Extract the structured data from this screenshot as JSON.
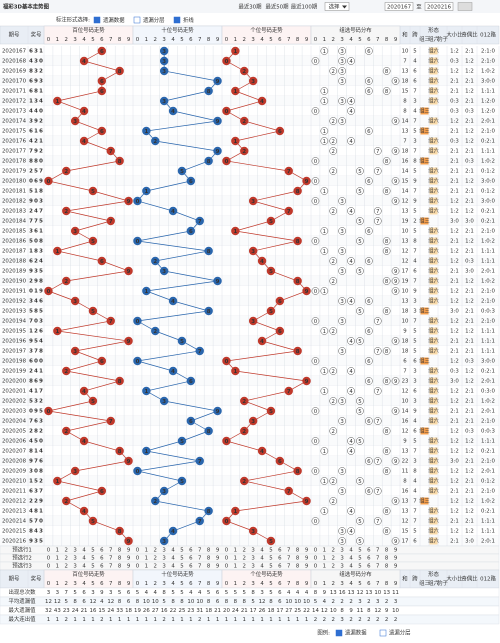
{
  "top": {
    "title": "福彩3D基本走势图",
    "links": [
      "最近30期",
      "最近50期",
      "最近100期"
    ],
    "select": "选择",
    "from": "2020167",
    "to_label": "至",
    "to": "2020216"
  },
  "options": {
    "label": "标注形式选择:",
    "items": [
      "遗漏数据",
      "遗漏分层",
      "折线"
    ]
  },
  "header": {
    "issue": "期号",
    "number": "奖号",
    "sections": [
      "百位号码走势",
      "十位号码走势",
      "个位号码走势",
      "组选号码分布"
    ],
    "digits": [
      0,
      1,
      2,
      3,
      4,
      5,
      6,
      7,
      8,
      9
    ],
    "sum": "和",
    "span": "跨",
    "form": "形态",
    "formTypes": [
      "组三",
      "组六",
      "豹子"
    ],
    "size": "大小比",
    "parity": "奇偶比",
    "route": "012路"
  },
  "rows": [
    {
      "issue": "2020167",
      "digits": [
        6,
        3,
        1
      ],
      "sum": 10,
      "span": 5,
      "form": "组六",
      "size": "1:2",
      "parity": "2:1",
      "route": "2:1:0"
    },
    {
      "issue": "2020168",
      "digits": [
        4,
        3,
        0
      ],
      "sum": 7,
      "span": 4,
      "form": "组六",
      "size": "0:3",
      "parity": "1:2",
      "route": "2:1:0"
    },
    {
      "issue": "2020169",
      "digits": [
        8,
        3,
        2
      ],
      "sum": 13,
      "span": 6,
      "form": "组六",
      "size": "1:2",
      "parity": "1:2",
      "route": "1:0:2"
    },
    {
      "issue": "2020170",
      "digits": [
        6,
        9,
        3
      ],
      "sum": 18,
      "span": 6,
      "form": "组六",
      "size": "2:1",
      "parity": "2:1",
      "route": "3:0:0"
    },
    {
      "issue": "2020171",
      "digits": [
        6,
        8,
        1
      ],
      "sum": 15,
      "span": 7,
      "form": "组六",
      "size": "2:1",
      "parity": "1:2",
      "route": "1:1:1"
    },
    {
      "issue": "2020172",
      "digits": [
        1,
        3,
        4
      ],
      "sum": 8,
      "span": 3,
      "form": "组六",
      "size": "0:3",
      "parity": "2:1",
      "route": "1:2:0"
    },
    {
      "issue": "2020173",
      "digits": [
        4,
        4,
        0
      ],
      "sum": 8,
      "span": 4,
      "form": "组三",
      "size": "0:3",
      "parity": "0:3",
      "route": "1:2:0"
    },
    {
      "issue": "2020174",
      "digits": [
        3,
        9,
        2
      ],
      "sum": 14,
      "span": 7,
      "form": "组六",
      "size": "1:2",
      "parity": "2:1",
      "route": "2:0:1"
    },
    {
      "issue": "2020175",
      "digits": [
        6,
        1,
        6
      ],
      "sum": 13,
      "span": 5,
      "form": "组三",
      "size": "2:1",
      "parity": "1:2",
      "route": "2:1:0"
    },
    {
      "issue": "2020176",
      "digits": [
        4,
        2,
        1
      ],
      "sum": 7,
      "span": 3,
      "form": "组六",
      "size": "0:3",
      "parity": "1:2",
      "route": "0:2:1"
    },
    {
      "issue": "2020177",
      "digits": [
        7,
        9,
        2
      ],
      "sum": 18,
      "span": 7,
      "form": "组六",
      "size": "2:1",
      "parity": "2:1",
      "route": "1:1:1"
    },
    {
      "issue": "2020178",
      "digits": [
        8,
        8,
        0
      ],
      "sum": 16,
      "span": 8,
      "form": "组三",
      "size": "2:1",
      "parity": "0:3",
      "route": "1:0:2"
    },
    {
      "issue": "2020179",
      "digits": [
        2,
        5,
        7
      ],
      "sum": 14,
      "span": 5,
      "form": "组六",
      "size": "2:1",
      "parity": "2:1",
      "route": "0:1:2"
    },
    {
      "issue": "2020180",
      "digits": [
        0,
        6,
        9
      ],
      "sum": 15,
      "span": 9,
      "form": "组六",
      "size": "2:1",
      "parity": "1:2",
      "route": "3:0:0"
    },
    {
      "issue": "2020181",
      "digits": [
        5,
        1,
        8
      ],
      "sum": 14,
      "span": 7,
      "form": "组六",
      "size": "2:1",
      "parity": "2:1",
      "route": "0:1:2"
    },
    {
      "issue": "2020182",
      "digits": [
        9,
        0,
        3
      ],
      "sum": 12,
      "span": 9,
      "form": "组六",
      "size": "1:2",
      "parity": "2:1",
      "route": "3:0:0"
    },
    {
      "issue": "2020183",
      "digits": [
        2,
        4,
        7
      ],
      "sum": 13,
      "span": 5,
      "form": "组六",
      "size": "1:2",
      "parity": "1:2",
      "route": "0:2:1"
    },
    {
      "issue": "2020184",
      "digits": [
        7,
        7,
        5
      ],
      "sum": 19,
      "span": 2,
      "form": "组三",
      "size": "3:0",
      "parity": "3:0",
      "route": "0:2:1"
    },
    {
      "issue": "2020185",
      "digits": [
        3,
        6,
        1
      ],
      "sum": 10,
      "span": 5,
      "form": "组六",
      "size": "1:2",
      "parity": "2:1",
      "route": "2:1:0"
    },
    {
      "issue": "2020186",
      "digits": [
        5,
        0,
        8
      ],
      "sum": 13,
      "span": 8,
      "form": "组六",
      "size": "2:1",
      "parity": "1:2",
      "route": "1:0:2"
    },
    {
      "issue": "2020187",
      "digits": [
        1,
        8,
        3
      ],
      "sum": 12,
      "span": 7,
      "form": "组六",
      "size": "1:2",
      "parity": "2:1",
      "route": "1:1:1"
    },
    {
      "issue": "2020188",
      "digits": [
        6,
        2,
        4
      ],
      "sum": 12,
      "span": 4,
      "form": "组六",
      "size": "1:2",
      "parity": "0:3",
      "route": "1:1:1"
    },
    {
      "issue": "2020189",
      "digits": [
        9,
        3,
        5
      ],
      "sum": 17,
      "span": 6,
      "form": "组六",
      "size": "2:1",
      "parity": "3:0",
      "route": "2:0:1"
    },
    {
      "issue": "2020190",
      "digits": [
        2,
        9,
        8
      ],
      "sum": 19,
      "span": 7,
      "form": "组六",
      "size": "2:1",
      "parity": "1:2",
      "route": "1:0:2"
    },
    {
      "issue": "2020191",
      "digits": [
        0,
        1,
        9
      ],
      "sum": 10,
      "span": 9,
      "form": "组六",
      "size": "1:2",
      "parity": "2:1",
      "route": "2:1:0"
    },
    {
      "issue": "2020192",
      "digits": [
        3,
        4,
        6
      ],
      "sum": 13,
      "span": 3,
      "form": "组六",
      "size": "1:2",
      "parity": "1:2",
      "route": "2:1:0"
    },
    {
      "issue": "2020193",
      "digits": [
        5,
        8,
        5
      ],
      "sum": 18,
      "span": 3,
      "form": "组三",
      "size": "3:0",
      "parity": "2:1",
      "route": "0:0:3"
    },
    {
      "issue": "2020194",
      "digits": [
        7,
        0,
        3
      ],
      "sum": 10,
      "span": 7,
      "form": "组六",
      "size": "1:2",
      "parity": "2:1",
      "route": "2:1:0"
    },
    {
      "issue": "2020195",
      "digits": [
        1,
        2,
        6
      ],
      "sum": 9,
      "span": 5,
      "form": "组六",
      "size": "1:2",
      "parity": "1:2",
      "route": "1:1:1"
    },
    {
      "issue": "2020196",
      "digits": [
        9,
        5,
        4
      ],
      "sum": 18,
      "span": 5,
      "form": "组六",
      "size": "2:1",
      "parity": "2:1",
      "route": "1:1:1"
    },
    {
      "issue": "2020197",
      "digits": [
        3,
        7,
        8
      ],
      "sum": 18,
      "span": 5,
      "form": "组六",
      "size": "2:1",
      "parity": "2:1",
      "route": "1:1:1"
    },
    {
      "issue": "2020198",
      "digits": [
        6,
        0,
        0
      ],
      "sum": 6,
      "span": 6,
      "form": "组三",
      "size": "1:2",
      "parity": "0:3",
      "route": "3:0:0"
    },
    {
      "issue": "2020199",
      "digits": [
        2,
        4,
        1
      ],
      "sum": 7,
      "span": 3,
      "form": "组六",
      "size": "0:3",
      "parity": "1:2",
      "route": "0:2:1"
    },
    {
      "issue": "2020200",
      "digits": [
        8,
        6,
        9
      ],
      "sum": 23,
      "span": 3,
      "form": "组六",
      "size": "3:0",
      "parity": "1:2",
      "route": "2:0:1"
    },
    {
      "issue": "2020201",
      "digits": [
        4,
        1,
        7
      ],
      "sum": 12,
      "span": 6,
      "form": "组六",
      "size": "1:2",
      "parity": "2:1",
      "route": "0:3:0"
    },
    {
      "issue": "2020202",
      "digits": [
        5,
        3,
        2
      ],
      "sum": 10,
      "span": 3,
      "form": "组六",
      "size": "1:2",
      "parity": "2:1",
      "route": "1:0:2"
    },
    {
      "issue": "2020203",
      "digits": [
        0,
        9,
        5
      ],
      "sum": 14,
      "span": 9,
      "form": "组六",
      "size": "2:1",
      "parity": "2:1",
      "route": "2:0:1"
    },
    {
      "issue": "2020204",
      "digits": [
        7,
        6,
        3
      ],
      "sum": 16,
      "span": 4,
      "form": "组六",
      "size": "2:1",
      "parity": "2:1",
      "route": "2:1:0"
    },
    {
      "issue": "2020205",
      "digits": [
        2,
        8,
        2
      ],
      "sum": 12,
      "span": 6,
      "form": "组三",
      "size": "1:2",
      "parity": "0:3",
      "route": "0:0:3"
    },
    {
      "issue": "2020206",
      "digits": [
        4,
        5,
        0
      ],
      "sum": 9,
      "span": 5,
      "form": "组六",
      "size": "1:2",
      "parity": "1:2",
      "route": "1:1:1"
    },
    {
      "issue": "2020207",
      "digits": [
        8,
        1,
        4
      ],
      "sum": 13,
      "span": 7,
      "form": "组六",
      "size": "1:2",
      "parity": "1:2",
      "route": "0:2:1"
    },
    {
      "issue": "2020208",
      "digits": [
        9,
        7,
        6
      ],
      "sum": 22,
      "span": 3,
      "form": "组六",
      "size": "3:0",
      "parity": "2:1",
      "route": "2:1:0"
    },
    {
      "issue": "2020209",
      "digits": [
        3,
        0,
        8
      ],
      "sum": 11,
      "span": 8,
      "form": "组六",
      "size": "1:2",
      "parity": "1:2",
      "route": "2:0:1"
    },
    {
      "issue": "2020210",
      "digits": [
        1,
        5,
        2
      ],
      "sum": 8,
      "span": 4,
      "form": "组六",
      "size": "1:2",
      "parity": "2:1",
      "route": "0:1:2"
    },
    {
      "issue": "2020211",
      "digits": [
        6,
        3,
        7
      ],
      "sum": 16,
      "span": 4,
      "form": "组六",
      "size": "2:1",
      "parity": "2:1",
      "route": "2:1:0"
    },
    {
      "issue": "2020212",
      "digits": [
        2,
        2,
        9
      ],
      "sum": 13,
      "span": 7,
      "form": "组三",
      "size": "1:2",
      "parity": "1:2",
      "route": "1:0:2"
    },
    {
      "issue": "2020213",
      "digits": [
        4,
        8,
        1
      ],
      "sum": 13,
      "span": 7,
      "form": "组六",
      "size": "1:2",
      "parity": "1:2",
      "route": "0:2:1"
    },
    {
      "issue": "2020214",
      "digits": [
        5,
        7,
        0
      ],
      "sum": 12,
      "span": 7,
      "form": "组六",
      "size": "2:1",
      "parity": "2:1",
      "route": "1:1:1"
    },
    {
      "issue": "2020215",
      "digits": [
        8,
        4,
        3
      ],
      "sum": 15,
      "span": 5,
      "form": "组六",
      "size": "1:2",
      "parity": "1:2",
      "route": "1:1:1"
    },
    {
      "issue": "2020216",
      "digits": [
        9,
        3,
        5
      ],
      "sum": 17,
      "span": 6,
      "form": "组六",
      "size": "2:1",
      "parity": "3:0",
      "route": "2:0:1"
    }
  ],
  "preselect": [
    "预选行1",
    "预选行2",
    "预选行3"
  ],
  "stats": [
    {
      "label": "出现总次数",
      "values": [
        3,
        3,
        7,
        5,
        6,
        3,
        9,
        3,
        5,
        6,
        5,
        4,
        4,
        8,
        5,
        5,
        4,
        4,
        5,
        6,
        5,
        5,
        5,
        8,
        3,
        5,
        6,
        4,
        4,
        4,
        8,
        9,
        13,
        16,
        13,
        12,
        13,
        10,
        13,
        11
      ]
    },
    {
      "label": "平均遗漏值",
      "values": [
        12,
        12,
        5,
        8,
        6,
        12,
        4,
        12,
        8,
        6,
        8,
        10,
        10,
        5,
        8,
        8,
        10,
        10,
        8,
        6,
        8,
        8,
        8,
        5,
        12,
        8,
        6,
        10,
        10,
        10,
        5,
        4,
        2,
        2,
        2,
        3,
        2,
        3,
        2,
        3
      ]
    },
    {
      "label": "最大遗漏值",
      "values": [
        32,
        43,
        23,
        24,
        21,
        16,
        15,
        24,
        33,
        18,
        19,
        26,
        27,
        16,
        22,
        25,
        23,
        31,
        18,
        21,
        20,
        24,
        21,
        17,
        26,
        18,
        17,
        27,
        25,
        22,
        14,
        12,
        10,
        8,
        9,
        11,
        8,
        12,
        9,
        10
      ]
    },
    {
      "label": "最大连出值",
      "values": [
        1,
        1,
        2,
        1,
        1,
        1,
        2,
        1,
        1,
        1,
        1,
        1,
        1,
        2,
        1,
        1,
        1,
        2,
        1,
        1,
        1,
        1,
        1,
        1,
        1,
        1,
        1,
        1,
        1,
        1,
        2,
        2,
        2,
        3,
        2,
        2,
        2,
        2,
        2,
        2
      ]
    }
  ],
  "legend": {
    "label": "图例:",
    "items": [
      "遗漏数据",
      "遗漏分层"
    ]
  }
}
